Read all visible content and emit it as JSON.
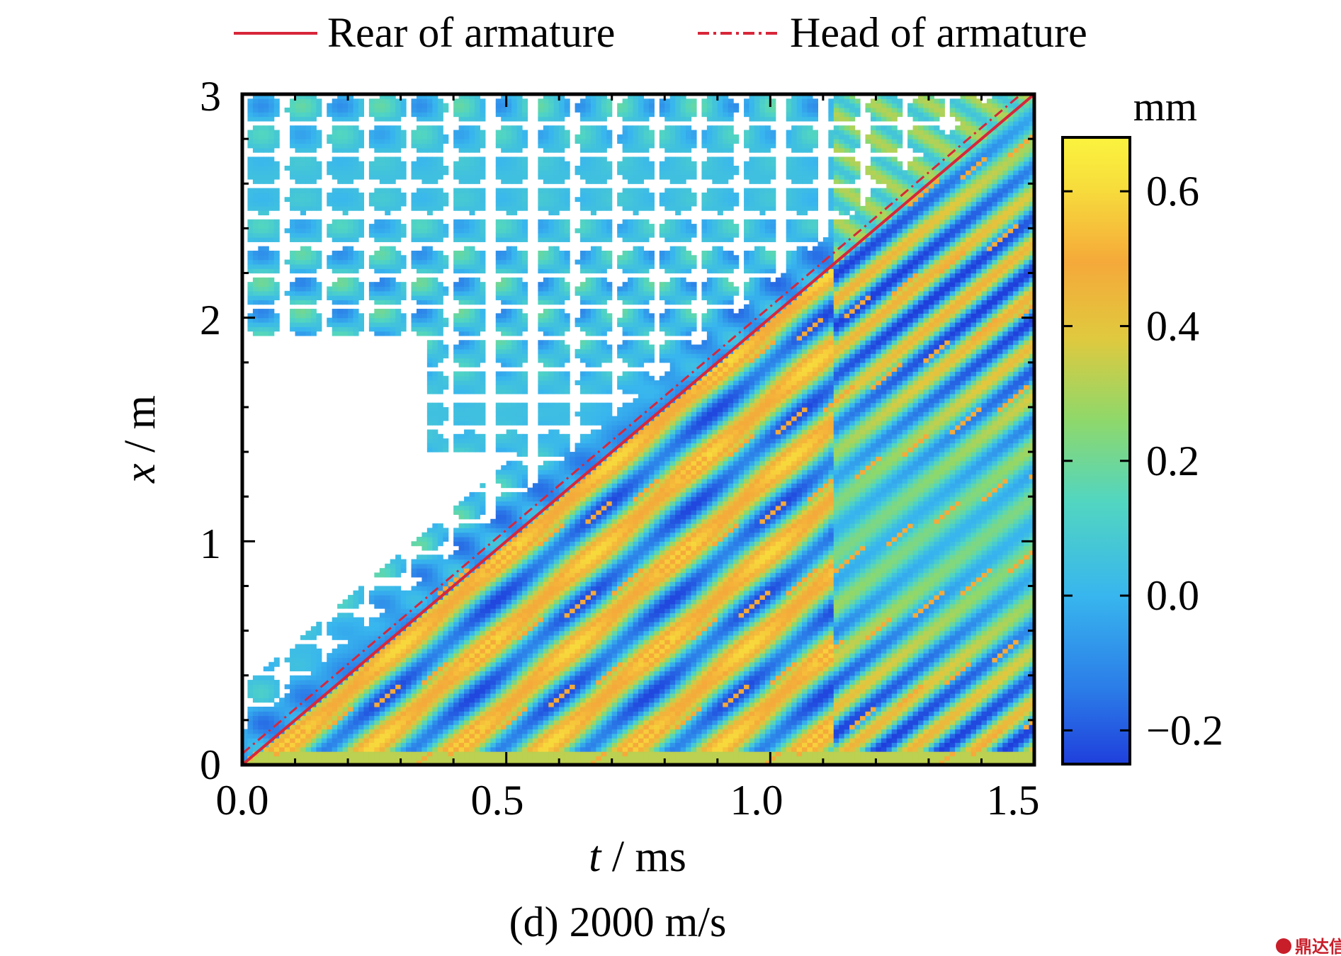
{
  "chart_data": {
    "type": "heatmap",
    "title": "",
    "caption": "(d) 2000 m/s",
    "xlabel": {
      "var": "t",
      "unit": " / ms"
    },
    "ylabel": {
      "var": "x",
      "unit": " / m"
    },
    "xlim": [
      0,
      1.5
    ],
    "ylim": [
      0,
      3
    ],
    "xticks": [
      "0.0",
      "0.5",
      "1.0",
      "1.5"
    ],
    "yticks": [
      "0",
      "1",
      "2",
      "3"
    ],
    "legend": {
      "placement": "top",
      "entries": [
        {
          "label": "Rear of armature",
          "style": "solid",
          "color": "#d8263a"
        },
        {
          "label": "Head of armature",
          "style": "dash-dot",
          "color": "#d8263a"
        }
      ]
    },
    "series": [
      {
        "name": "Rear of armature",
        "x": [
          0,
          1.5
        ],
        "y": [
          0,
          3.0
        ]
      },
      {
        "name": "Head of armature",
        "x": [
          0,
          1.5
        ],
        "y": [
          0.05,
          3.05
        ]
      }
    ],
    "colorbar": {
      "unit": "mm",
      "range": [
        -0.25,
        0.68
      ],
      "ticks": [
        "0.6",
        "0.4",
        "0.2",
        "0.0",
        "−0.2"
      ],
      "tick_values": [
        0.6,
        0.4,
        0.2,
        0.0,
        -0.2
      ],
      "colormap": [
        "#1f3fdc",
        "#2b7ce8",
        "#38b6ee",
        "#52d6c0",
        "#8fd86a",
        "#e0c93e",
        "#f5a93a",
        "#f7dd3c",
        "#fbf33e"
      ]
    },
    "field_description_values": {
      "behind_armature_band_amplitude_mm": 0.55,
      "ahead_of_armature_baseline_mm": 0.05,
      "reflection_time_ms": 1.12,
      "secondary_front_position_m": 2.2
    }
  },
  "watermark": {
    "text": "鼎达信",
    "color": "#c81e2a"
  }
}
